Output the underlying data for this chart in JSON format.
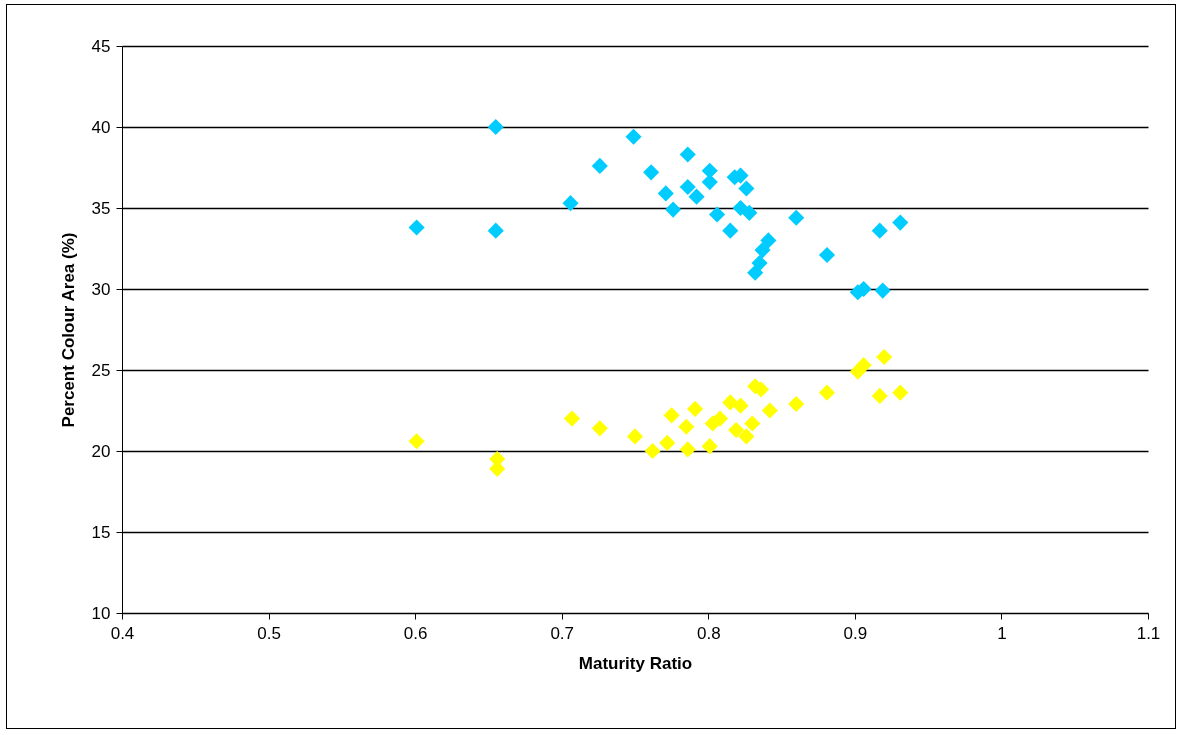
{
  "chart_data": {
    "type": "scatter",
    "xlabel": "Maturity Ratio",
    "ylabel": "Percent Colour Area (%)",
    "xlim": [
      0.4,
      1.1
    ],
    "xticks": [
      0.4,
      0.5,
      0.6,
      0.7,
      0.8,
      0.9,
      1,
      1.1
    ],
    "ylim": [
      10,
      45
    ],
    "yticks": [
      10,
      15,
      20,
      25,
      30,
      35,
      40,
      45
    ],
    "grid": "y",
    "legend": false,
    "marker": "diamond",
    "series": [
      {
        "color": "#00ccff",
        "x": [
          0.601,
          0.655,
          0.655,
          0.706,
          0.726,
          0.749,
          0.761,
          0.771,
          0.776,
          0.786,
          0.786,
          0.792,
          0.801,
          0.801,
          0.806,
          0.815,
          0.818,
          0.822,
          0.826,
          0.822,
          0.828,
          0.832,
          0.835,
          0.837,
          0.841,
          0.86,
          0.881,
          0.902,
          0.906,
          0.919,
          0.917,
          0.931
        ],
        "values": [
          33.8,
          40.0,
          33.6,
          35.3,
          37.6,
          39.4,
          37.2,
          35.9,
          34.9,
          38.3,
          36.3,
          35.7,
          37.3,
          36.6,
          34.6,
          33.6,
          36.9,
          37.0,
          36.2,
          35.0,
          34.7,
          31.0,
          31.6,
          32.4,
          33.0,
          34.4,
          32.1,
          29.8,
          30.0,
          29.9,
          33.6,
          34.1
        ]
      },
      {
        "color": "#ffff00",
        "x": [
          0.601,
          0.656,
          0.656,
          0.707,
          0.726,
          0.75,
          0.762,
          0.772,
          0.775,
          0.785,
          0.786,
          0.791,
          0.801,
          0.803,
          0.808,
          0.815,
          0.819,
          0.822,
          0.826,
          0.83,
          0.832,
          0.836,
          0.842,
          0.86,
          0.881,
          0.902,
          0.906,
          0.92,
          0.917,
          0.931
        ],
        "values": [
          20.6,
          19.5,
          18.9,
          22.0,
          21.4,
          20.9,
          20.0,
          20.5,
          22.2,
          21.5,
          20.1,
          22.6,
          20.3,
          21.7,
          22.0,
          23.0,
          21.3,
          22.8,
          20.9,
          21.7,
          24.0,
          23.8,
          22.5,
          22.9,
          23.6,
          24.9,
          25.3,
          25.8,
          23.4,
          23.6
        ]
      }
    ]
  }
}
